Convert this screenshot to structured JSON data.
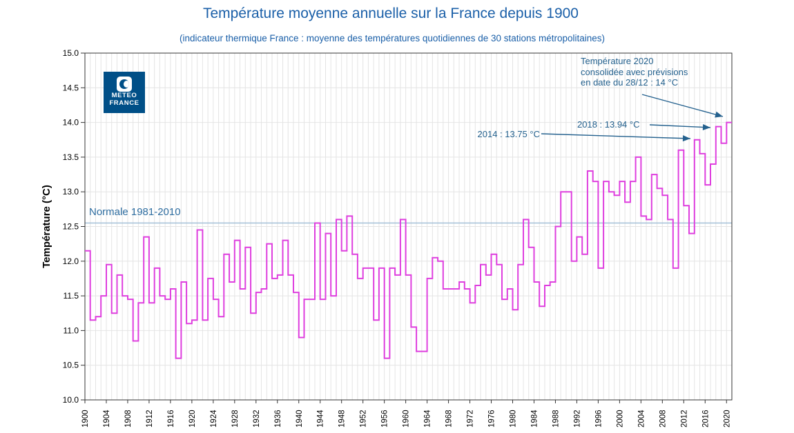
{
  "header": {
    "title": "Température moyenne annuelle sur la France depuis 1900",
    "subtitle": "(indicateur thermique France : moyenne des températures quotidiennes de 30 stations métropolitaines)"
  },
  "logo": {
    "line1": "METEO",
    "line2": "FRANCE"
  },
  "normale": {
    "label": "Normale 1981-2010",
    "value": 12.55
  },
  "annotations": {
    "a2014": {
      "text": "2014 : 13.75 °C"
    },
    "a2018": {
      "text": "2018 : 13.94 °C"
    },
    "a2020": {
      "line1": "Température 2020",
      "line2": "consolidée avec prévisions",
      "line3": "en date du 28/12 : 14 °C"
    }
  },
  "colors": {
    "series": "#de3ede",
    "title_blue": "#1a5fa8",
    "annotation_blue": "#24618e",
    "normale_line": "#9bbad4",
    "normale_label": "#2e6da0",
    "logo_bg": "#004f87",
    "grid": "#e4e4e4",
    "axis": "#333333"
  },
  "chart_data": {
    "type": "line",
    "subtype": "step",
    "title": "Température moyenne annuelle sur la France depuis 1900",
    "xlabel": "",
    "ylabel": "Température (°C)",
    "ylim": [
      10.0,
      15.0
    ],
    "y_tick_step": 0.5,
    "y_tick_labels": [
      "10.0",
      "10.5",
      "11.0",
      "11.5",
      "12.0",
      "12.5",
      "13.0",
      "13.5",
      "14.0",
      "14.5",
      "15.0"
    ],
    "x_tick_years": [
      1900,
      1904,
      1908,
      1912,
      1916,
      1920,
      1924,
      1928,
      1932,
      1936,
      1940,
      1944,
      1948,
      1952,
      1956,
      1960,
      1964,
      1968,
      1972,
      1976,
      1980,
      1984,
      1988,
      1992,
      1996,
      2000,
      2004,
      2008,
      2012,
      2016,
      2020
    ],
    "grid": "on",
    "normale_1981_2010": 12.55,
    "years": [
      1900,
      1901,
      1902,
      1903,
      1904,
      1905,
      1906,
      1907,
      1908,
      1909,
      1910,
      1911,
      1912,
      1913,
      1914,
      1915,
      1916,
      1917,
      1918,
      1919,
      1920,
      1921,
      1922,
      1923,
      1924,
      1925,
      1926,
      1927,
      1928,
      1929,
      1930,
      1931,
      1932,
      1933,
      1934,
      1935,
      1936,
      1937,
      1938,
      1939,
      1940,
      1941,
      1942,
      1943,
      1944,
      1945,
      1946,
      1947,
      1948,
      1949,
      1950,
      1951,
      1952,
      1953,
      1954,
      1955,
      1956,
      1957,
      1958,
      1959,
      1960,
      1961,
      1962,
      1963,
      1964,
      1965,
      1966,
      1967,
      1968,
      1969,
      1970,
      1971,
      1972,
      1973,
      1974,
      1975,
      1976,
      1977,
      1978,
      1979,
      1980,
      1981,
      1982,
      1983,
      1984,
      1985,
      1986,
      1987,
      1988,
      1989,
      1990,
      1991,
      1992,
      1993,
      1994,
      1995,
      1996,
      1997,
      1998,
      1999,
      2000,
      2001,
      2002,
      2003,
      2004,
      2005,
      2006,
      2007,
      2008,
      2009,
      2010,
      2011,
      2012,
      2013,
      2014,
      2015,
      2016,
      2017,
      2018,
      2019,
      2020
    ],
    "values": [
      12.15,
      11.15,
      11.2,
      11.5,
      11.95,
      11.25,
      11.8,
      11.5,
      11.45,
      10.85,
      11.4,
      12.35,
      11.4,
      11.9,
      11.5,
      11.45,
      11.6,
      10.6,
      11.7,
      11.1,
      11.15,
      12.45,
      11.15,
      11.75,
      11.45,
      11.2,
      12.1,
      11.7,
      12.3,
      11.6,
      12.2,
      11.25,
      11.55,
      11.6,
      12.25,
      11.75,
      11.8,
      12.3,
      11.8,
      11.55,
      10.9,
      11.45,
      11.45,
      12.55,
      11.45,
      12.4,
      11.5,
      12.6,
      12.15,
      12.65,
      12.1,
      11.75,
      11.9,
      11.9,
      11.15,
      11.9,
      10.6,
      11.9,
      11.8,
      12.6,
      11.8,
      11.05,
      10.7,
      10.7,
      11.75,
      12.05,
      12.0,
      11.6,
      11.6,
      11.6,
      11.7,
      11.6,
      11.4,
      11.65,
      11.95,
      11.8,
      12.1,
      11.95,
      11.45,
      11.6,
      11.3,
      11.95,
      12.6,
      12.2,
      11.7,
      11.35,
      11.65,
      11.7,
      12.5,
      13.0,
      13.0,
      12.0,
      12.35,
      12.1,
      13.3,
      13.15,
      11.9,
      13.15,
      13.0,
      12.95,
      13.15,
      12.85,
      13.15,
      13.5,
      12.65,
      12.6,
      13.25,
      13.05,
      12.95,
      12.6,
      11.9,
      13.6,
      12.8,
      12.4,
      13.75,
      13.55,
      13.1,
      13.4,
      13.94,
      13.7,
      14.0
    ],
    "highlighted_points": {
      "2014": 13.75,
      "2018": 13.94,
      "2020": 14.0
    },
    "legend_position": "none"
  }
}
